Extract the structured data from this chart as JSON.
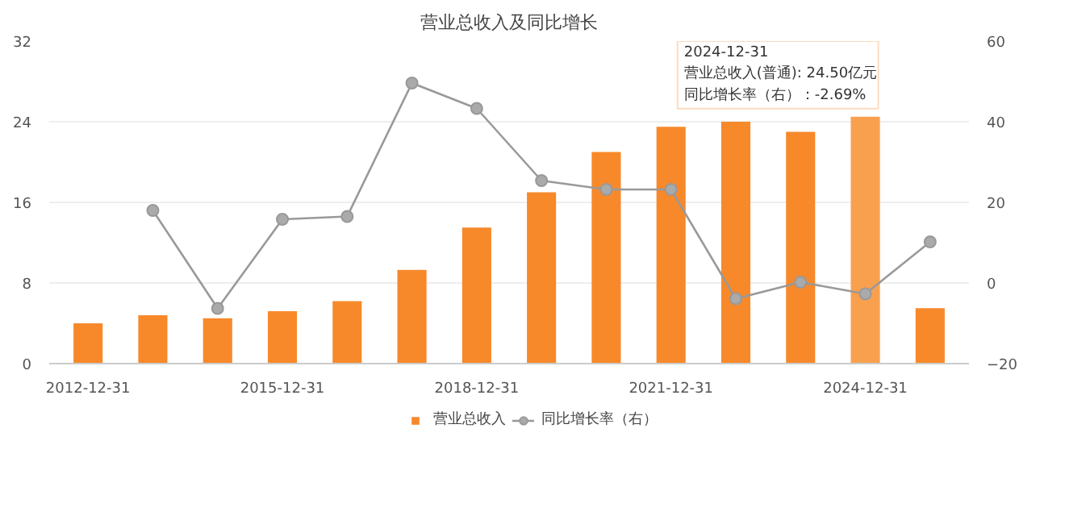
{
  "chart_data": {
    "type": "bar",
    "title": "营业总收入及同比增长",
    "categories": [
      "2012-12-31",
      null,
      null,
      "2015-12-31",
      null,
      null,
      "2018-12-31",
      null,
      null,
      "2021-12-31",
      null,
      null,
      "2024-12-31",
      null
    ],
    "series": [
      {
        "name": "营业总收入",
        "colors": [
          "#f7892b",
          "#f7892b",
          "#f7892b",
          "#f7892b",
          "#f7892b",
          "#f7892b",
          "#f7892b",
          "#f7892b",
          "#f7892b",
          "#f7892b",
          "#f7892b",
          "#f7892b",
          "#f9a04e",
          "#f7892b"
        ],
        "values": [
          4.0,
          4.8,
          4.5,
          5.2,
          6.2,
          9.3,
          13.5,
          17.0,
          21.0,
          23.5,
          24.0,
          23.0,
          24.5,
          5.5
        ]
      },
      {
        "name": "同比增长率（右）",
        "type": "line",
        "axis": "y2",
        "color": "#999999",
        "marker": "circle",
        "values": [
          null,
          18.0,
          -6.3,
          15.8,
          16.5,
          49.6,
          43.3,
          25.4,
          23.2,
          23.2,
          -3.9,
          0.2,
          -2.7,
          10.2
        ]
      }
    ],
    "ylim": [
      0,
      32
    ],
    "yticks": [
      0,
      8,
      16,
      24,
      32
    ],
    "y2lim": [
      -20,
      60
    ],
    "y2ticks": [
      -20,
      0,
      20,
      40,
      60
    ],
    "grid": "y",
    "legend": "bottom",
    "annotations": [
      "2024-12-31",
      "营业总收入(普通): 24.50亿元",
      "同比增长率（右）：-2.69%"
    ]
  }
}
